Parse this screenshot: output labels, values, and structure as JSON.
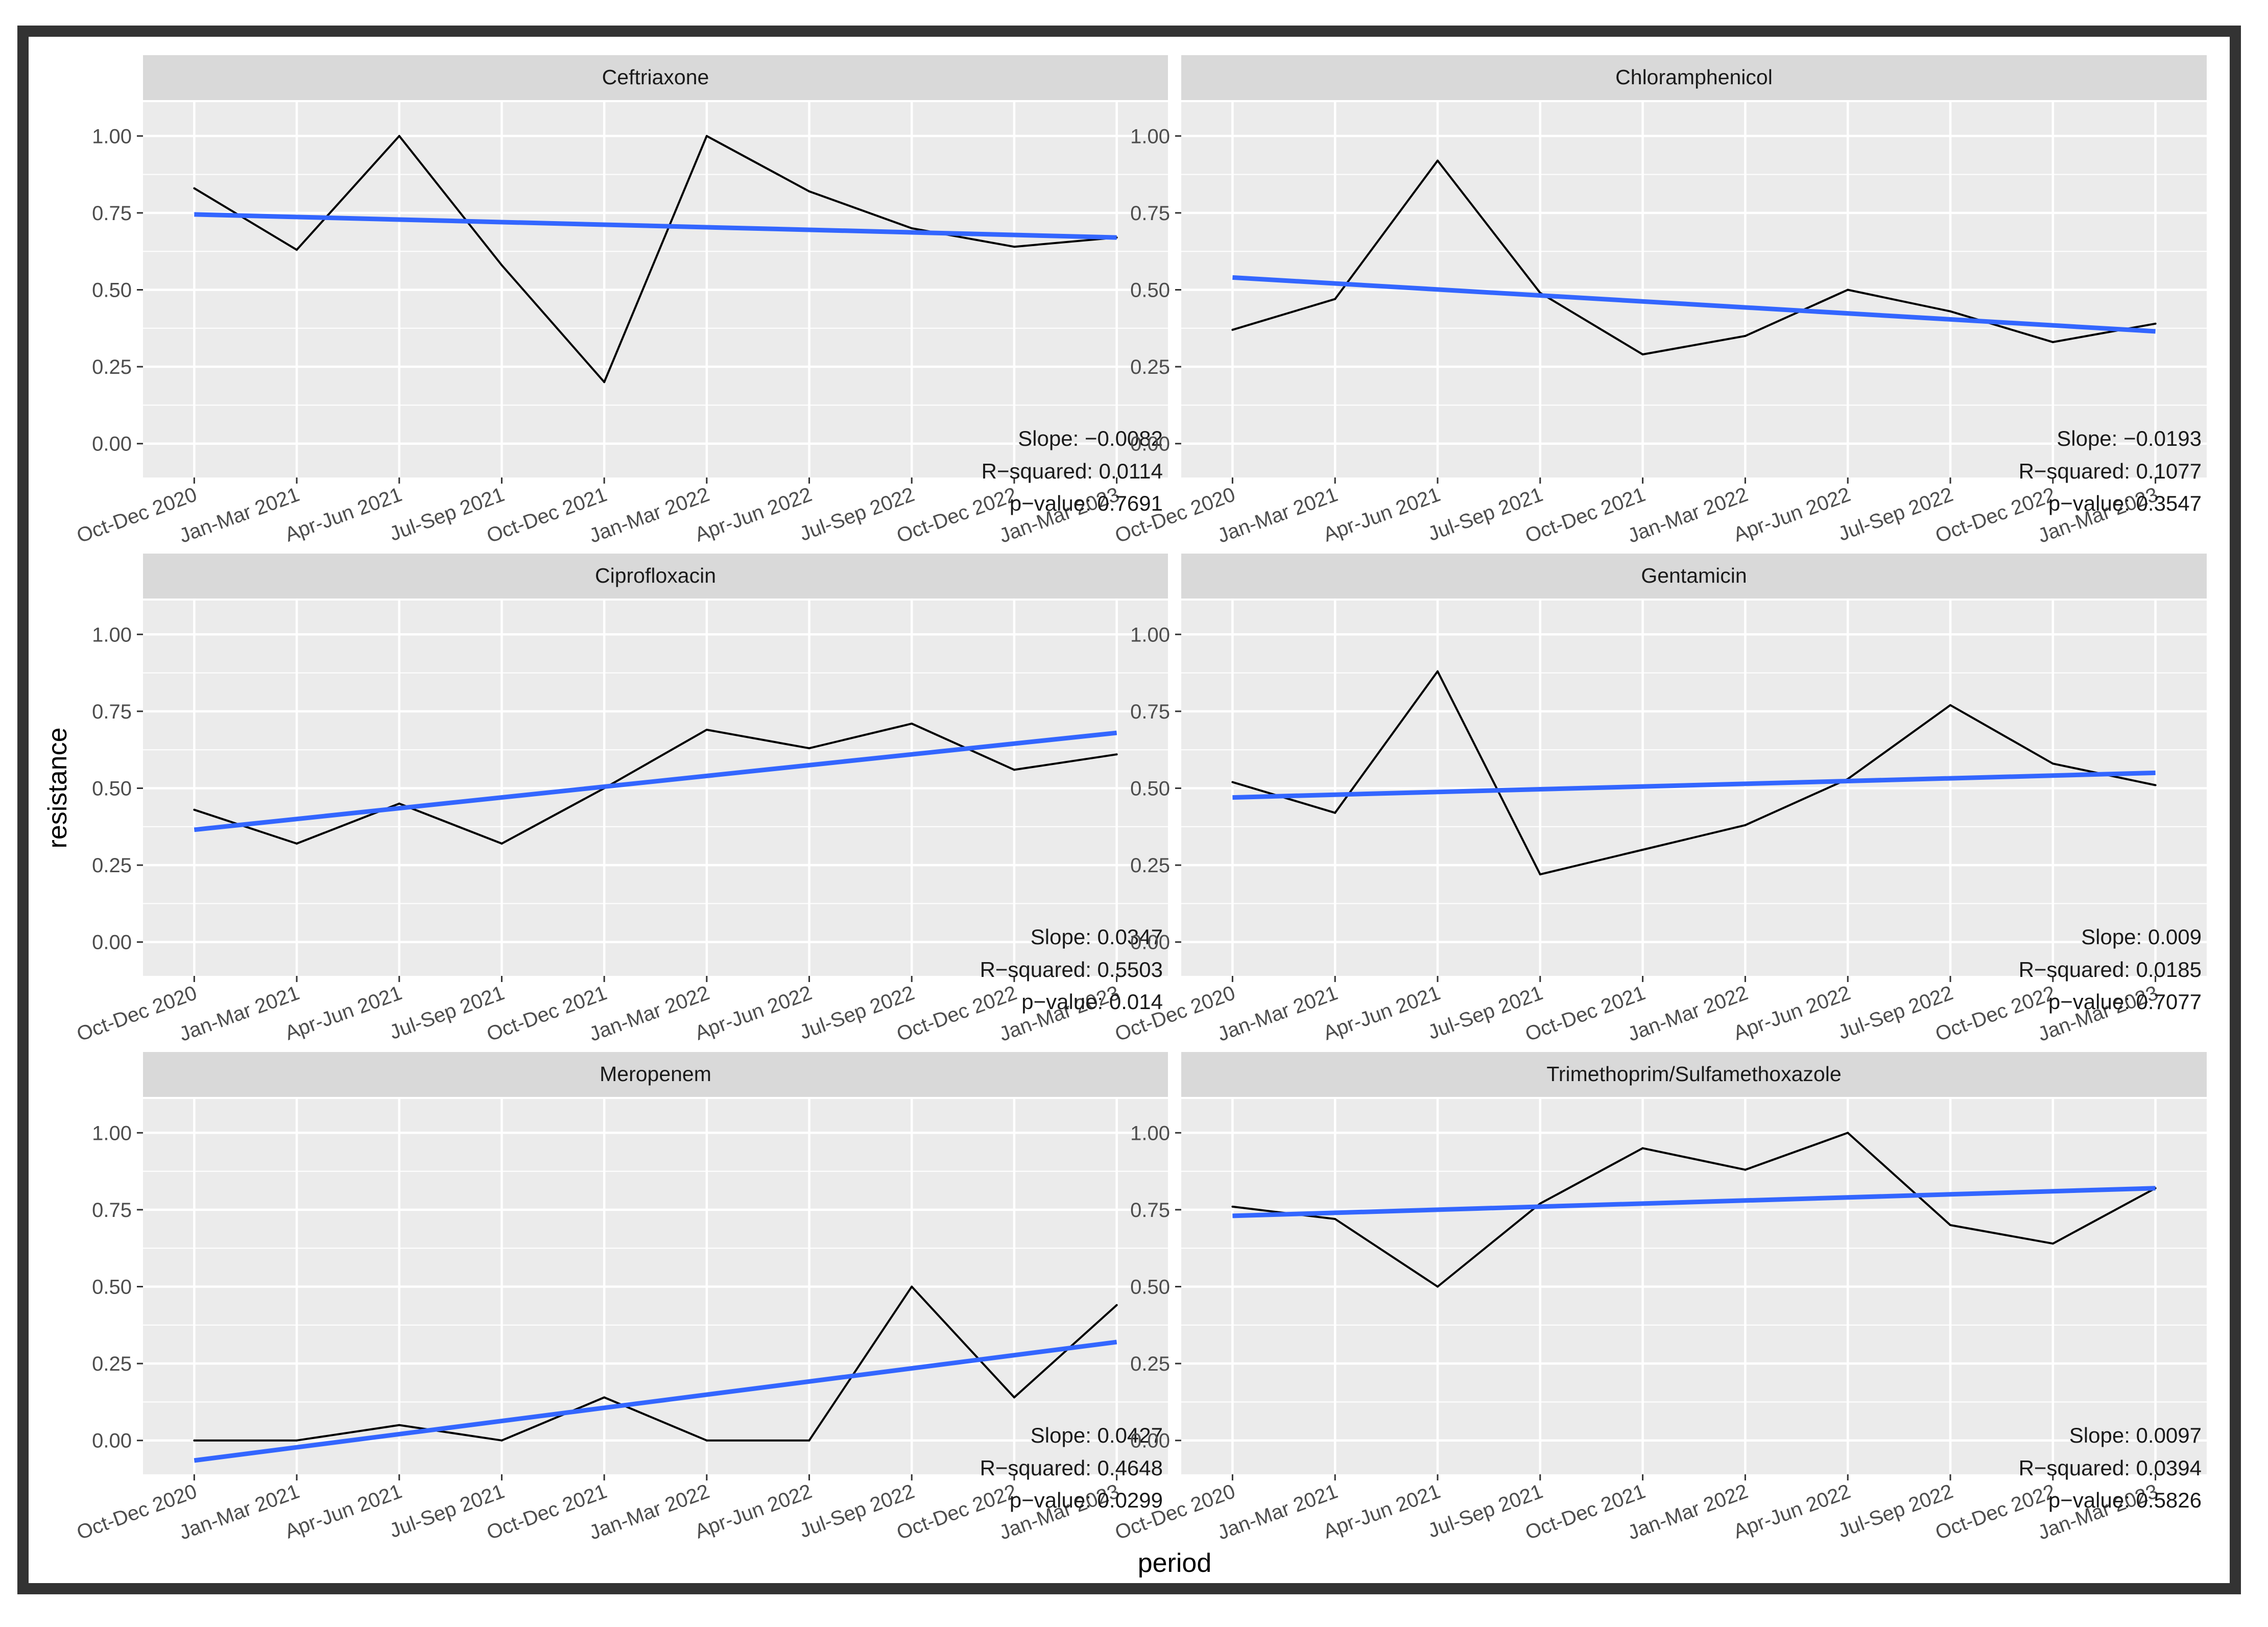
{
  "chart_data": {
    "type": "line",
    "xlabel": "period",
    "ylabel": "resistance",
    "ylim": [
      -0.11,
      1.11
    ],
    "y_ticks": [
      "0.00",
      "0.25",
      "0.50",
      "0.75",
      "1.00"
    ],
    "y_tick_values": [
      0,
      0.25,
      0.5,
      0.75,
      1.0
    ],
    "categories": [
      "Oct-Dec 2020",
      "Jan-Mar 2021",
      "Apr-Jun 2021",
      "Jul-Sep 2021",
      "Oct-Dec 2021",
      "Jan-Mar 2022",
      "Apr-Jun 2022",
      "Jul-Sep 2022",
      "Oct-Dec 2022",
      "Jan-Mar 2023"
    ],
    "colors": {
      "observed": "#000000",
      "trend": "#3366FF",
      "panel_bg": "#EBEBEB",
      "strip_bg": "#D9D9D9",
      "grid": "#FFFFFF"
    },
    "panels": [
      {
        "title": "Ceftriaxone",
        "values": [
          0.83,
          0.63,
          1.0,
          0.58,
          0.2,
          1.0,
          0.82,
          0.7,
          0.64,
          0.67
        ],
        "trend": [
          0.745,
          0.67
        ],
        "slope": "Slope: −0.0082",
        "r_squared": "R−squared: 0.0114",
        "p_value": "p−value: 0.7691"
      },
      {
        "title": "Chloramphenicol",
        "values": [
          0.37,
          0.47,
          0.92,
          0.49,
          0.29,
          0.35,
          0.5,
          0.43,
          0.33,
          0.39
        ],
        "trend": [
          0.54,
          0.365
        ],
        "slope": "Slope: −0.0193",
        "r_squared": "R−squared: 0.1077",
        "p_value": "p−value: 0.3547"
      },
      {
        "title": "Ciprofloxacin",
        "values": [
          0.43,
          0.32,
          0.45,
          0.32,
          0.5,
          0.69,
          0.63,
          0.71,
          0.56,
          0.61
        ],
        "trend": [
          0.365,
          0.68
        ],
        "slope": "Slope: 0.0347",
        "r_squared": "R−squared: 0.5503",
        "p_value": "p−value: 0.014"
      },
      {
        "title": "Gentamicin",
        "values": [
          0.52,
          0.42,
          0.88,
          0.22,
          0.3,
          0.38,
          0.53,
          0.77,
          0.58,
          0.51
        ],
        "trend": [
          0.47,
          0.55
        ],
        "slope": "Slope: 0.009",
        "r_squared": "R−squared: 0.0185",
        "p_value": "p−value: 0.7077"
      },
      {
        "title": "Meropenem",
        "values": [
          0.0,
          0.0,
          0.05,
          0.0,
          0.14,
          0.0,
          0.0,
          0.5,
          0.14,
          0.44
        ],
        "trend": [
          -0.065,
          0.32
        ],
        "slope": "Slope: 0.0427",
        "r_squared": "R−squared: 0.4648",
        "p_value": "p−value: 0.0299"
      },
      {
        "title": "Trimethoprim/Sulfamethoxazole",
        "values": [
          0.76,
          0.72,
          0.5,
          0.77,
          0.95,
          0.88,
          1.0,
          0.7,
          0.64,
          0.82
        ],
        "trend": [
          0.73,
          0.82
        ],
        "slope": "Slope: 0.0097",
        "r_squared": "R−squared: 0.0394",
        "p_value": "p−value: 0.5826"
      }
    ]
  }
}
